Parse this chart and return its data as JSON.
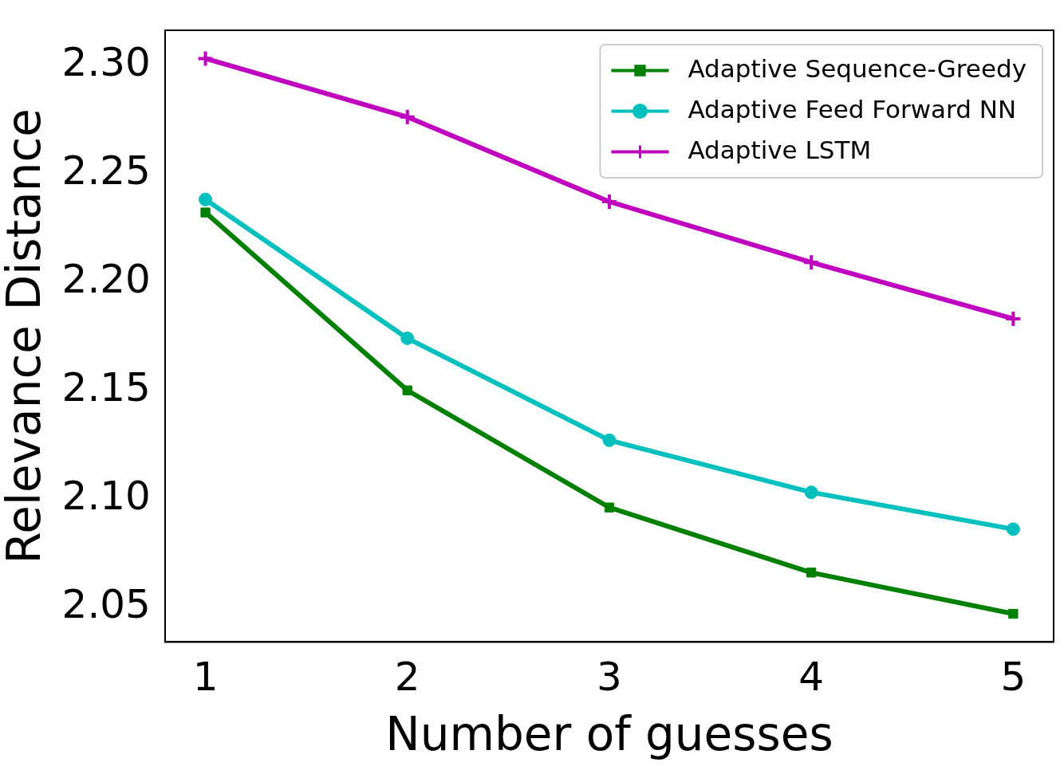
{
  "chart_data": {
    "type": "line",
    "xlabel": "Number of guesses",
    "ylabel": "Relevance Distance",
    "x": [
      1,
      2,
      3,
      4,
      5
    ],
    "series": [
      {
        "name": "Adaptive Sequence-Greedy",
        "color": "#008000",
        "marker": "square",
        "values": [
          2.232,
          2.15,
          2.096,
          2.066,
          2.047
        ]
      },
      {
        "name": "Adaptive Feed Forward NN",
        "color": "#00bfbf",
        "marker": "circle",
        "values": [
          2.238,
          2.174,
          2.127,
          2.103,
          2.086
        ]
      },
      {
        "name": "Adaptive LSTM",
        "color": "#bf00bf",
        "marker": "cross",
        "values": [
          2.303,
          2.276,
          2.237,
          2.209,
          2.183
        ]
      }
    ],
    "xlim": [
      0.8,
      5.2
    ],
    "xticks": [
      1,
      2,
      3,
      4,
      5
    ],
    "ylim": [
      2.034,
      2.316
    ],
    "yticks": [
      {
        "value": 2.05,
        "label": "2.05"
      },
      {
        "value": 2.1,
        "label": "2.10"
      },
      {
        "value": 2.15,
        "label": "2.15"
      },
      {
        "value": 2.2,
        "label": "2.20"
      },
      {
        "value": 2.25,
        "label": "2.25"
      },
      {
        "value": 2.3,
        "label": "2.30"
      }
    ],
    "grid": false,
    "legend": "top right",
    "line_style": "solid"
  }
}
